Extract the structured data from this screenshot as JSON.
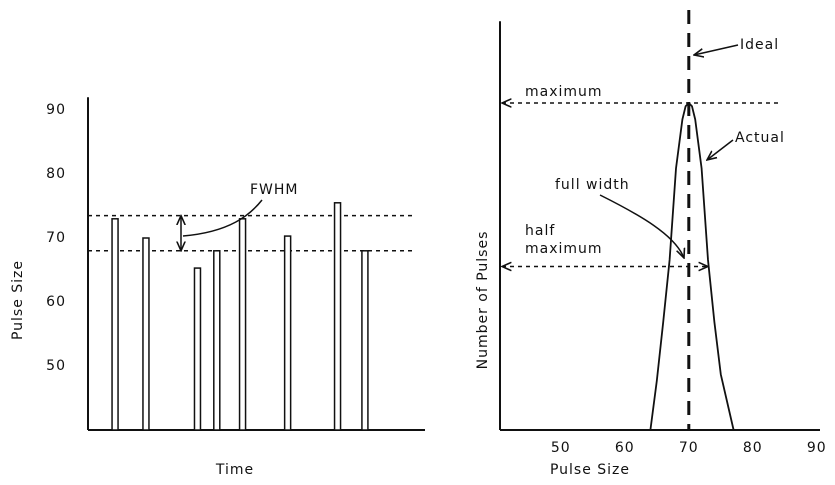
{
  "chart_data": [
    {
      "type": "bar",
      "y_label": "Pulse Size",
      "x_label": "Time",
      "x": [
        8.4,
        18,
        34,
        40,
        48,
        62,
        77.5,
        86
      ],
      "values": [
        73,
        70,
        65.3,
        68,
        73,
        70.3,
        75.5,
        68
      ],
      "xlim": [
        0,
        100
      ],
      "ylim": [
        40,
        92
      ],
      "yticks": [
        50,
        60,
        70,
        80,
        90
      ],
      "hlines": [
        73.5,
        68
      ],
      "annotations": [
        "FWHM"
      ],
      "color": "#ffffff"
    },
    {
      "type": "line",
      "y_label": "Number of Pulses",
      "x_label": "Pulse Size",
      "series": [
        {
          "name": "Actual",
          "color": "#111111",
          "x": [
            64,
            65,
            66,
            67,
            68,
            69,
            69.5,
            70,
            70.5,
            71,
            72,
            73,
            74,
            75,
            77
          ],
          "values": [
            0,
            0.15,
            0.33,
            0.52,
            0.8,
            0.95,
            0.99,
            1.0,
            0.99,
            0.95,
            0.8,
            0.52,
            0.33,
            0.17,
            0
          ]
        }
      ],
      "xlim": [
        40.5,
        90.5
      ],
      "ylim": [
        0,
        1.25
      ],
      "xticks": [
        50,
        60,
        70,
        80,
        90
      ],
      "ideal": 70,
      "hlines": [
        1,
        0.5
      ],
      "annotations": [
        "Ideal",
        "maximum",
        "Actual",
        "full width",
        "half",
        "maximum"
      ]
    }
  ]
}
